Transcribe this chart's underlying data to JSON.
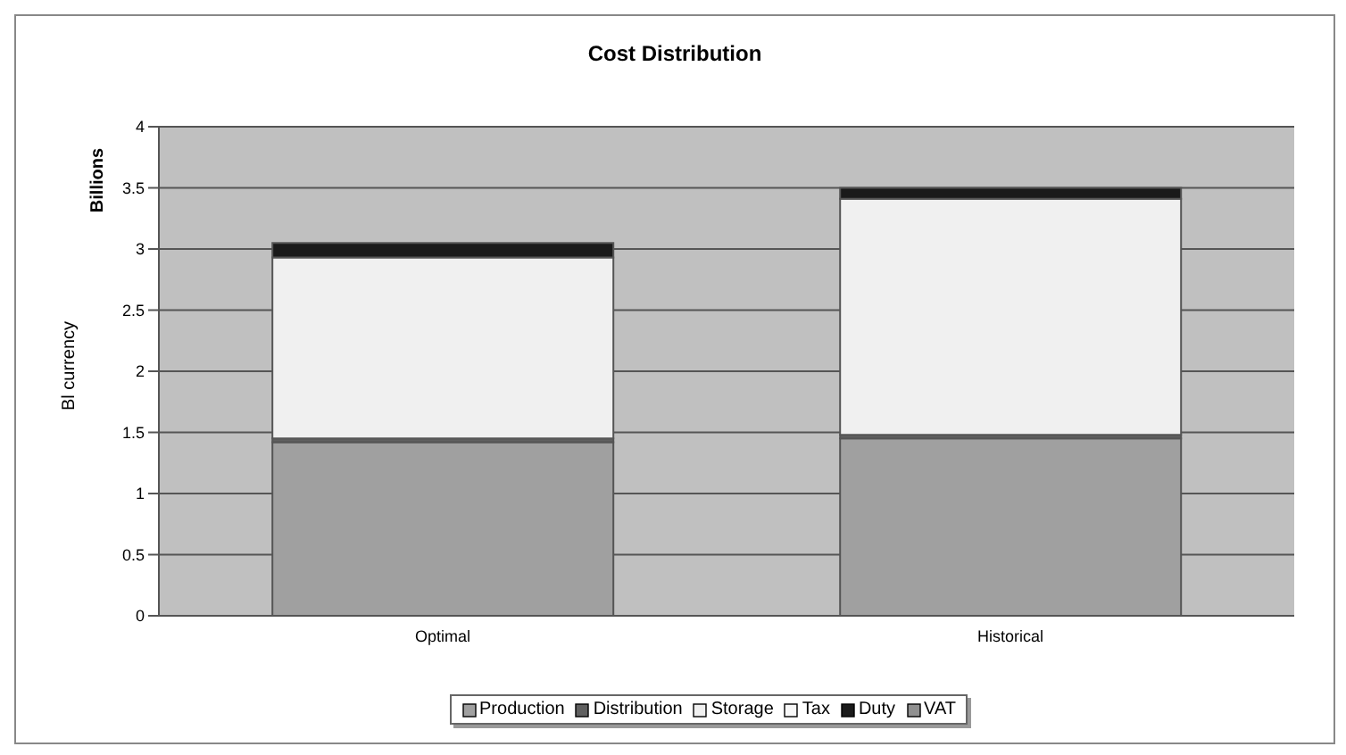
{
  "chart_data": {
    "type": "bar",
    "title": "Cost Distribution",
    "ylabel": "Bl currency",
    "annotations": [
      "Billions"
    ],
    "categories": [
      "Optimal",
      "Historical"
    ],
    "stacked": true,
    "series": [
      {
        "name": "Production",
        "color": "#a0a0a0",
        "values": [
          1.42,
          1.45
        ]
      },
      {
        "name": "Distribution",
        "color": "#606060",
        "values": [
          0.03,
          0.03
        ]
      },
      {
        "name": "Storage",
        "color": "#f0f0f0",
        "values": [
          1.48,
          1.93
        ]
      },
      {
        "name": "Tax",
        "color": "#f8f8f8",
        "values": [
          0,
          0
        ]
      },
      {
        "name": "Duty",
        "color": "#1a1a1a",
        "values": [
          0.12,
          0.09
        ]
      },
      {
        "name": "VAT",
        "color": "#909090",
        "values": [
          0,
          0
        ]
      }
    ],
    "ylim": [
      0,
      4
    ],
    "yticks": [
      0,
      0.5,
      1,
      1.5,
      2,
      2.5,
      3,
      3.5,
      4
    ],
    "grid": "y",
    "legend": "bottom"
  }
}
